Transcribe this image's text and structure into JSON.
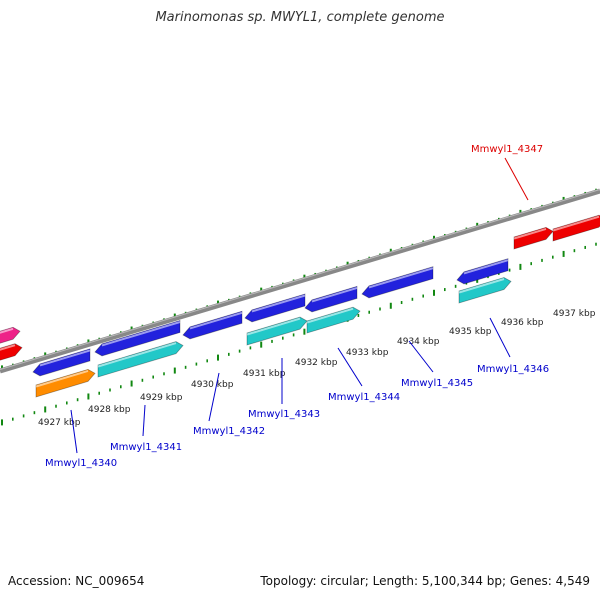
{
  "title": "Marinomonas sp. MWYL1, complete genome",
  "footer": {
    "accession": "Accession: NC_009654",
    "summary": "Topology: circular; Length: 5,100,344 bp; Genes: 4,549"
  },
  "colors": {
    "backbone": "#888888",
    "ticks": "#118811",
    "gene_blue": "#2222dd",
    "gene_cyan": "#22c8c8",
    "gene_orange": "#ff8c00",
    "gene_red": "#ee0000",
    "gene_pink": "#ee2288",
    "label_blue": "#0000cc",
    "label_red": "#dd0000"
  },
  "diagram": {
    "kbp_labels": [
      "4927 kbp",
      "4928 kbp",
      "4929 kbp",
      "4930 kbp",
      "4931 kbp",
      "4932 kbp",
      "4933 kbp",
      "4934 kbp",
      "4935 kbp",
      "4936 kbp",
      "4937 kbp"
    ],
    "gene_labels": [
      "Mmwyl1_4340",
      "Mmwyl1_4341",
      "Mmwyl1_4342",
      "Mmwyl1_4343",
      "Mmwyl1_4344",
      "Mmwyl1_4345",
      "Mmwyl1_4346",
      "Mmwyl1_4347"
    ]
  }
}
